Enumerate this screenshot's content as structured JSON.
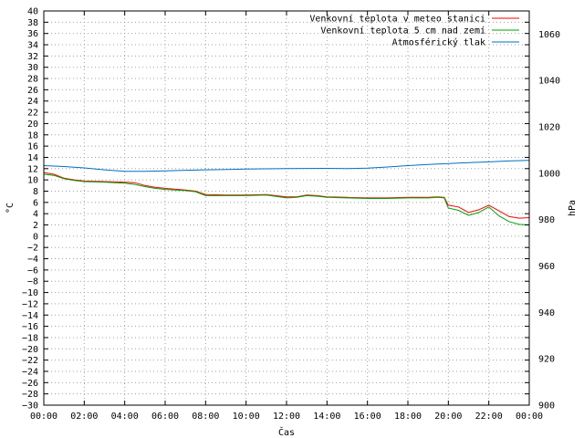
{
  "chart_data": {
    "type": "line",
    "xlabel": "Čas",
    "ylabel": "°C",
    "y2label": "hPa",
    "x_ticks": [
      "00:00",
      "02:00",
      "04:00",
      "06:00",
      "08:00",
      "10:00",
      "12:00",
      "14:00",
      "16:00",
      "18:00",
      "20:00",
      "22:00",
      "00:00"
    ],
    "x_range_hours": [
      0,
      24
    ],
    "ylim": [
      -30,
      40
    ],
    "y_ticks": [
      -30,
      -28,
      -26,
      -24,
      -22,
      -20,
      -18,
      -16,
      -14,
      -12,
      -10,
      -8,
      -6,
      -4,
      -2,
      0,
      2,
      4,
      6,
      8,
      10,
      12,
      14,
      16,
      18,
      20,
      22,
      24,
      26,
      28,
      30,
      32,
      34,
      36,
      38,
      40
    ],
    "y2lim": [
      900,
      1070
    ],
    "y2_ticks": [
      900,
      920,
      940,
      960,
      980,
      1000,
      1020,
      1040,
      1060
    ],
    "grid": true,
    "legend_position": "top-right",
    "series": [
      {
        "name": "Venkovní teplota v meteo stanici",
        "axis": "y",
        "color": "#ff0000",
        "x": [
          0,
          0.5,
          1,
          1.5,
          2,
          3,
          4,
          4.5,
          5,
          5.5,
          6,
          7,
          7.5,
          8,
          9,
          10,
          11,
          12,
          12.5,
          13,
          13.5,
          14,
          15,
          16,
          17,
          18,
          19,
          19.5,
          19.8,
          20,
          20.5,
          21,
          21.5,
          22,
          22.5,
          23,
          23.5,
          24
        ],
        "values": [
          11.3,
          11.0,
          10.3,
          10.0,
          9.8,
          9.7,
          9.6,
          9.5,
          9.0,
          8.7,
          8.5,
          8.2,
          8.0,
          7.4,
          7.3,
          7.3,
          7.4,
          7.0,
          7.0,
          7.3,
          7.2,
          7.0,
          6.9,
          6.8,
          6.8,
          6.9,
          6.9,
          7.0,
          6.9,
          5.5,
          5.2,
          4.2,
          4.7,
          5.5,
          4.5,
          3.5,
          3.2,
          3.3
        ]
      },
      {
        "name": "Venkovní teplota 5 cm nad zemí",
        "axis": "y",
        "color": "#00a000",
        "x": [
          0,
          0.5,
          1,
          1.5,
          2,
          3,
          4,
          4.5,
          5,
          5.5,
          6,
          7,
          7.5,
          8,
          9,
          10,
          11,
          12,
          12.5,
          13,
          13.5,
          14,
          15,
          16,
          17,
          18,
          19,
          19.5,
          19.8,
          20,
          20.5,
          21,
          21.5,
          22,
          22.5,
          23,
          23.5,
          24
        ],
        "values": [
          11.0,
          10.8,
          10.2,
          9.9,
          9.7,
          9.6,
          9.4,
          9.2,
          8.8,
          8.5,
          8.3,
          8.1,
          7.9,
          7.2,
          7.2,
          7.2,
          7.3,
          6.8,
          6.9,
          7.2,
          7.1,
          6.9,
          6.8,
          6.7,
          6.7,
          6.8,
          6.8,
          6.9,
          6.8,
          5.0,
          4.6,
          3.7,
          4.2,
          5.2,
          3.6,
          2.6,
          2.1,
          2.0
        ]
      },
      {
        "name": "Atmosférický tlak",
        "axis": "y2",
        "color": "#0070c0",
        "x": [
          0,
          1,
          2,
          3,
          4,
          5,
          6,
          7,
          8,
          10,
          12,
          14,
          15,
          16,
          17,
          18,
          19,
          20,
          21,
          22,
          23,
          24
        ],
        "values": [
          1003.3,
          1002.9,
          1002.3,
          1001.5,
          1000.8,
          1000.8,
          1001.0,
          1001.3,
          1001.5,
          1001.8,
          1002.0,
          1002.1,
          1002.0,
          1002.2,
          1002.7,
          1003.3,
          1003.8,
          1004.2,
          1004.6,
          1004.9,
          1005.3,
          1005.6
        ]
      }
    ]
  }
}
